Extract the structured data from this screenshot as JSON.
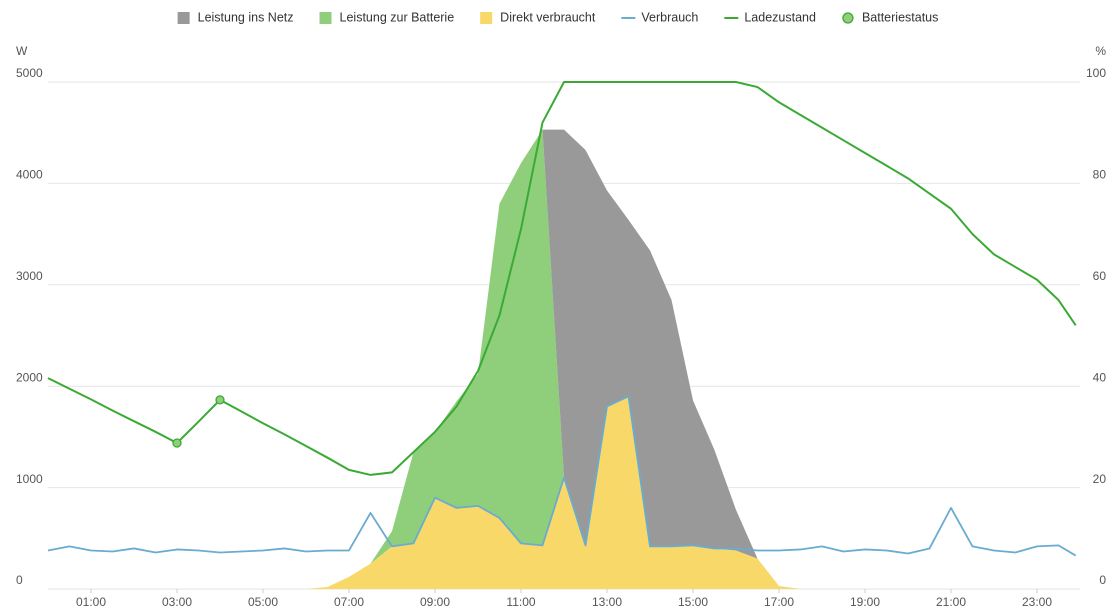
{
  "chart_data": {
    "type": "area",
    "y_label": "W",
    "y2_label": "%",
    "xlim": [
      0,
      24
    ],
    "xticks": [
      {
        "value": 1,
        "label": "01:00"
      },
      {
        "value": 3,
        "label": "03:00"
      },
      {
        "value": 5,
        "label": "05:00"
      },
      {
        "value": 7,
        "label": "07:00"
      },
      {
        "value": 9,
        "label": "09:00"
      },
      {
        "value": 11,
        "label": "11:00"
      },
      {
        "value": 13,
        "label": "13:00"
      },
      {
        "value": 15,
        "label": "15:00"
      },
      {
        "value": 17,
        "label": "17:00"
      },
      {
        "value": 19,
        "label": "19:00"
      },
      {
        "value": 21,
        "label": "21:00"
      },
      {
        "value": 23,
        "label": "23:00"
      }
    ],
    "ylim": [
      0,
      5000
    ],
    "yticks": [
      0,
      1000,
      2000,
      3000,
      4000,
      5000
    ],
    "y2lim": [
      0,
      100
    ],
    "y2ticks": [
      0,
      20,
      40,
      60,
      80,
      100
    ],
    "grid": true,
    "legend": "top",
    "x": [
      0,
      0.5,
      1,
      1.5,
      2,
      2.5,
      3,
      3.5,
      4,
      4.5,
      5,
      5.5,
      6,
      6.5,
      7,
      7.5,
      8,
      8.5,
      9,
      9.5,
      10,
      10.5,
      11,
      11.5,
      12,
      12.5,
      13,
      13.5,
      14,
      14.5,
      15,
      15.5,
      16,
      16.5,
      17,
      17.5,
      18,
      18.5,
      19,
      19.5,
      20,
      20.5,
      21,
      21.5,
      22,
      22.5,
      23,
      23.5,
      23.9
    ],
    "series": [
      {
        "name": "Leistung ins Netz",
        "color": "#999999",
        "kind": "area",
        "stack": 2,
        "values": [
          0,
          0,
          0,
          0,
          0,
          0,
          0,
          0,
          0,
          0,
          0,
          0,
          0,
          0,
          0,
          0,
          0,
          0,
          0,
          0,
          0,
          0,
          0,
          0,
          3430,
          3900,
          2130,
          1740,
          2920,
          2430,
          1430,
          970,
          400,
          0,
          0,
          0,
          0,
          0,
          0,
          0,
          0,
          0,
          0,
          0,
          0,
          0,
          0,
          0,
          0
        ]
      },
      {
        "name": "Leistung zur Batterie",
        "color": "#8fce7b",
        "kind": "area",
        "stack": 1,
        "values": [
          0,
          0,
          0,
          0,
          0,
          0,
          0,
          0,
          0,
          0,
          0,
          0,
          0,
          0,
          0,
          0,
          150,
          900,
          650,
          1050,
          1300,
          3100,
          3750,
          4100,
          0,
          0,
          0,
          0,
          0,
          0,
          0,
          0,
          0,
          0,
          0,
          0,
          0,
          0,
          0,
          0,
          0,
          0,
          0,
          0,
          0,
          0,
          0,
          0,
          0
        ]
      },
      {
        "name": "Direkt verbraucht",
        "color": "#f9d86a",
        "kind": "area",
        "stack": 0,
        "values": [
          0,
          0,
          0,
          0,
          0,
          0,
          0,
          0,
          0,
          0,
          0,
          0,
          0,
          20,
          120,
          250,
          420,
          450,
          900,
          800,
          820,
          700,
          450,
          430,
          1100,
          430,
          1800,
          1900,
          420,
          420,
          430,
          400,
          380,
          300,
          30,
          0,
          0,
          0,
          0,
          0,
          0,
          0,
          0,
          0,
          0,
          0,
          0,
          0,
          0
        ]
      },
      {
        "name": "Verbrauch",
        "color": "#6aabd0",
        "kind": "line",
        "values": [
          380,
          420,
          380,
          370,
          400,
          360,
          390,
          380,
          360,
          370,
          380,
          400,
          370,
          380,
          380,
          750,
          420,
          450,
          900,
          800,
          820,
          700,
          450,
          430,
          1100,
          430,
          1800,
          1900,
          420,
          420,
          430,
          400,
          400,
          380,
          380,
          390,
          420,
          370,
          390,
          380,
          350,
          400,
          800,
          420,
          380,
          360,
          420,
          430,
          330
        ]
      },
      {
        "name": "Ladezustand",
        "color": "#3aaa35",
        "kind": "line",
        "axis": "y2",
        "values": [
          41.6,
          39.5,
          37.4,
          35.2,
          33.1,
          31,
          28.8,
          33,
          37.3,
          35,
          32.7,
          30.5,
          28.2,
          25.9,
          23.5,
          22.5,
          23,
          27,
          31,
          36,
          43,
          54,
          71,
          92,
          100,
          100,
          100,
          100,
          100,
          100,
          100,
          100,
          100,
          99,
          96,
          93.5,
          91,
          88.5,
          86,
          83.5,
          81,
          78,
          75,
          70,
          66,
          63.5,
          61,
          57,
          52
        ]
      },
      {
        "name": "Batteriestatus",
        "color": "#8fce7b",
        "kind": "scatter",
        "axis": "y2",
        "x": [
          3,
          4
        ],
        "values": [
          28.8,
          37.3
        ]
      }
    ]
  }
}
